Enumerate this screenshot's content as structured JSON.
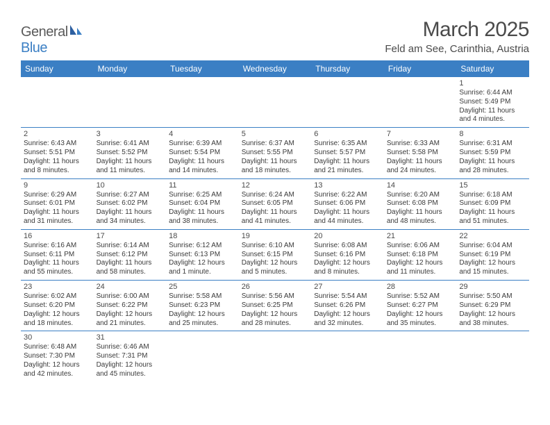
{
  "logo": {
    "general": "General",
    "blue": "Blue"
  },
  "title": "March 2025",
  "location": "Feld am See, Carinthia, Austria",
  "colors": {
    "header_bg": "#3b7fc4",
    "header_text": "#ffffff",
    "border": "#3b7fc4",
    "body_text": "#3a3a3a",
    "title_text": "#4a4a4a"
  },
  "weekdays": [
    "Sunday",
    "Monday",
    "Tuesday",
    "Wednesday",
    "Thursday",
    "Friday",
    "Saturday"
  ],
  "weeks": [
    [
      null,
      null,
      null,
      null,
      null,
      null,
      {
        "n": "1",
        "sr": "Sunrise: 6:44 AM",
        "ss": "Sunset: 5:49 PM",
        "d1": "Daylight: 11 hours",
        "d2": "and 4 minutes."
      }
    ],
    [
      {
        "n": "2",
        "sr": "Sunrise: 6:43 AM",
        "ss": "Sunset: 5:51 PM",
        "d1": "Daylight: 11 hours",
        "d2": "and 8 minutes."
      },
      {
        "n": "3",
        "sr": "Sunrise: 6:41 AM",
        "ss": "Sunset: 5:52 PM",
        "d1": "Daylight: 11 hours",
        "d2": "and 11 minutes."
      },
      {
        "n": "4",
        "sr": "Sunrise: 6:39 AM",
        "ss": "Sunset: 5:54 PM",
        "d1": "Daylight: 11 hours",
        "d2": "and 14 minutes."
      },
      {
        "n": "5",
        "sr": "Sunrise: 6:37 AM",
        "ss": "Sunset: 5:55 PM",
        "d1": "Daylight: 11 hours",
        "d2": "and 18 minutes."
      },
      {
        "n": "6",
        "sr": "Sunrise: 6:35 AM",
        "ss": "Sunset: 5:57 PM",
        "d1": "Daylight: 11 hours",
        "d2": "and 21 minutes."
      },
      {
        "n": "7",
        "sr": "Sunrise: 6:33 AM",
        "ss": "Sunset: 5:58 PM",
        "d1": "Daylight: 11 hours",
        "d2": "and 24 minutes."
      },
      {
        "n": "8",
        "sr": "Sunrise: 6:31 AM",
        "ss": "Sunset: 5:59 PM",
        "d1": "Daylight: 11 hours",
        "d2": "and 28 minutes."
      }
    ],
    [
      {
        "n": "9",
        "sr": "Sunrise: 6:29 AM",
        "ss": "Sunset: 6:01 PM",
        "d1": "Daylight: 11 hours",
        "d2": "and 31 minutes."
      },
      {
        "n": "10",
        "sr": "Sunrise: 6:27 AM",
        "ss": "Sunset: 6:02 PM",
        "d1": "Daylight: 11 hours",
        "d2": "and 34 minutes."
      },
      {
        "n": "11",
        "sr": "Sunrise: 6:25 AM",
        "ss": "Sunset: 6:04 PM",
        "d1": "Daylight: 11 hours",
        "d2": "and 38 minutes."
      },
      {
        "n": "12",
        "sr": "Sunrise: 6:24 AM",
        "ss": "Sunset: 6:05 PM",
        "d1": "Daylight: 11 hours",
        "d2": "and 41 minutes."
      },
      {
        "n": "13",
        "sr": "Sunrise: 6:22 AM",
        "ss": "Sunset: 6:06 PM",
        "d1": "Daylight: 11 hours",
        "d2": "and 44 minutes."
      },
      {
        "n": "14",
        "sr": "Sunrise: 6:20 AM",
        "ss": "Sunset: 6:08 PM",
        "d1": "Daylight: 11 hours",
        "d2": "and 48 minutes."
      },
      {
        "n": "15",
        "sr": "Sunrise: 6:18 AM",
        "ss": "Sunset: 6:09 PM",
        "d1": "Daylight: 11 hours",
        "d2": "and 51 minutes."
      }
    ],
    [
      {
        "n": "16",
        "sr": "Sunrise: 6:16 AM",
        "ss": "Sunset: 6:11 PM",
        "d1": "Daylight: 11 hours",
        "d2": "and 55 minutes."
      },
      {
        "n": "17",
        "sr": "Sunrise: 6:14 AM",
        "ss": "Sunset: 6:12 PM",
        "d1": "Daylight: 11 hours",
        "d2": "and 58 minutes."
      },
      {
        "n": "18",
        "sr": "Sunrise: 6:12 AM",
        "ss": "Sunset: 6:13 PM",
        "d1": "Daylight: 12 hours",
        "d2": "and 1 minute."
      },
      {
        "n": "19",
        "sr": "Sunrise: 6:10 AM",
        "ss": "Sunset: 6:15 PM",
        "d1": "Daylight: 12 hours",
        "d2": "and 5 minutes."
      },
      {
        "n": "20",
        "sr": "Sunrise: 6:08 AM",
        "ss": "Sunset: 6:16 PM",
        "d1": "Daylight: 12 hours",
        "d2": "and 8 minutes."
      },
      {
        "n": "21",
        "sr": "Sunrise: 6:06 AM",
        "ss": "Sunset: 6:18 PM",
        "d1": "Daylight: 12 hours",
        "d2": "and 11 minutes."
      },
      {
        "n": "22",
        "sr": "Sunrise: 6:04 AM",
        "ss": "Sunset: 6:19 PM",
        "d1": "Daylight: 12 hours",
        "d2": "and 15 minutes."
      }
    ],
    [
      {
        "n": "23",
        "sr": "Sunrise: 6:02 AM",
        "ss": "Sunset: 6:20 PM",
        "d1": "Daylight: 12 hours",
        "d2": "and 18 minutes."
      },
      {
        "n": "24",
        "sr": "Sunrise: 6:00 AM",
        "ss": "Sunset: 6:22 PM",
        "d1": "Daylight: 12 hours",
        "d2": "and 21 minutes."
      },
      {
        "n": "25",
        "sr": "Sunrise: 5:58 AM",
        "ss": "Sunset: 6:23 PM",
        "d1": "Daylight: 12 hours",
        "d2": "and 25 minutes."
      },
      {
        "n": "26",
        "sr": "Sunrise: 5:56 AM",
        "ss": "Sunset: 6:25 PM",
        "d1": "Daylight: 12 hours",
        "d2": "and 28 minutes."
      },
      {
        "n": "27",
        "sr": "Sunrise: 5:54 AM",
        "ss": "Sunset: 6:26 PM",
        "d1": "Daylight: 12 hours",
        "d2": "and 32 minutes."
      },
      {
        "n": "28",
        "sr": "Sunrise: 5:52 AM",
        "ss": "Sunset: 6:27 PM",
        "d1": "Daylight: 12 hours",
        "d2": "and 35 minutes."
      },
      {
        "n": "29",
        "sr": "Sunrise: 5:50 AM",
        "ss": "Sunset: 6:29 PM",
        "d1": "Daylight: 12 hours",
        "d2": "and 38 minutes."
      }
    ],
    [
      {
        "n": "30",
        "sr": "Sunrise: 6:48 AM",
        "ss": "Sunset: 7:30 PM",
        "d1": "Daylight: 12 hours",
        "d2": "and 42 minutes."
      },
      {
        "n": "31",
        "sr": "Sunrise: 6:46 AM",
        "ss": "Sunset: 7:31 PM",
        "d1": "Daylight: 12 hours",
        "d2": "and 45 minutes."
      },
      null,
      null,
      null,
      null,
      null
    ]
  ]
}
